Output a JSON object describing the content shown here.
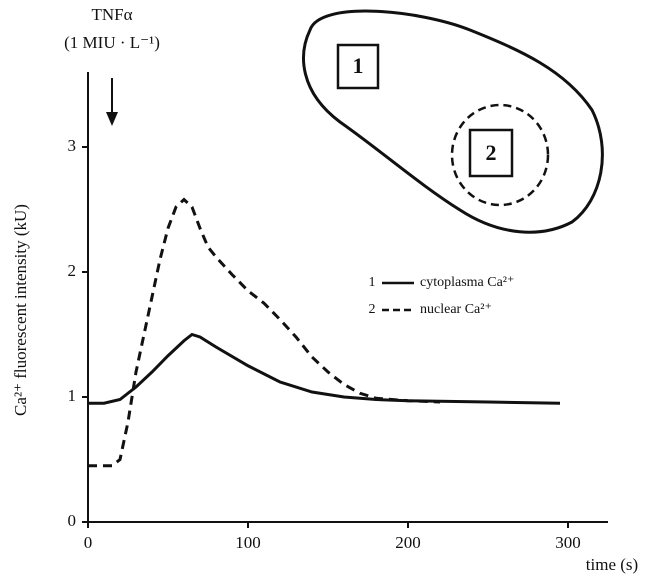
{
  "chart_data": {
    "type": "line",
    "annotation": [
      "TNFα",
      "(1 MIU · L⁻¹)"
    ],
    "cell_regions": [
      "1",
      "2"
    ],
    "x_label": "time (s)",
    "y_label": "Ca²⁺ fluorescent intensity (kU)",
    "xlim": [
      0,
      325
    ],
    "xticks": [
      0,
      100,
      200,
      300
    ],
    "ylim": [
      0,
      3.6
    ],
    "yticks": [
      0,
      1,
      2,
      3
    ],
    "series": [
      {
        "key": "1",
        "name": "cytoplasma Ca²⁺",
        "color": "#111111",
        "style": "solid",
        "x": [
          0,
          10,
          20,
          30,
          40,
          50,
          60,
          65,
          70,
          80,
          100,
          120,
          140,
          160,
          180,
          200,
          250,
          295
        ],
        "values": [
          0.95,
          0.95,
          0.98,
          1.08,
          1.2,
          1.33,
          1.45,
          1.5,
          1.48,
          1.4,
          1.25,
          1.12,
          1.04,
          1.0,
          0.98,
          0.97,
          0.96,
          0.95
        ]
      },
      {
        "key": "2",
        "name": "nuclear Ca²⁺",
        "color": "#111111",
        "style": "dashed",
        "x": [
          0,
          15,
          20,
          25,
          30,
          35,
          40,
          45,
          50,
          55,
          60,
          65,
          70,
          75,
          80,
          90,
          100,
          110,
          120,
          130,
          140,
          150,
          160,
          170,
          180,
          190,
          200,
          220
        ],
        "values": [
          0.45,
          0.45,
          0.5,
          0.8,
          1.2,
          1.5,
          1.8,
          2.1,
          2.35,
          2.52,
          2.58,
          2.52,
          2.35,
          2.2,
          2.12,
          1.98,
          1.85,
          1.75,
          1.62,
          1.48,
          1.32,
          1.2,
          1.1,
          1.03,
          0.99,
          0.98,
          0.97,
          0.96
        ]
      }
    ]
  }
}
